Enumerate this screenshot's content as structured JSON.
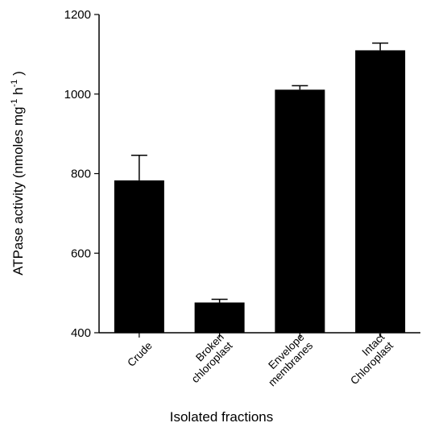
{
  "chart_data": {
    "type": "bar",
    "categories": [
      [
        "Crude"
      ],
      [
        "Broken",
        "chloroplast"
      ],
      [
        "Envelope",
        "membranes"
      ],
      [
        "Intact",
        "Chloroplast"
      ]
    ],
    "values": [
      783,
      476,
      1011,
      1110
    ],
    "error": [
      63,
      8,
      10,
      18
    ],
    "xlabel": "Isolated fractions",
    "ylabel": {
      "main": "ATPase activity (nmoles mg",
      "sup1": "-1",
      "mid": " h",
      "sup2": "-1",
      "end": " )"
    },
    "ylim": [
      400,
      1200
    ],
    "yticks": [
      "400",
      "600",
      "800",
      "1000",
      "1200"
    ],
    "bar_color": "#000000",
    "legend": "none",
    "grid": false
  }
}
